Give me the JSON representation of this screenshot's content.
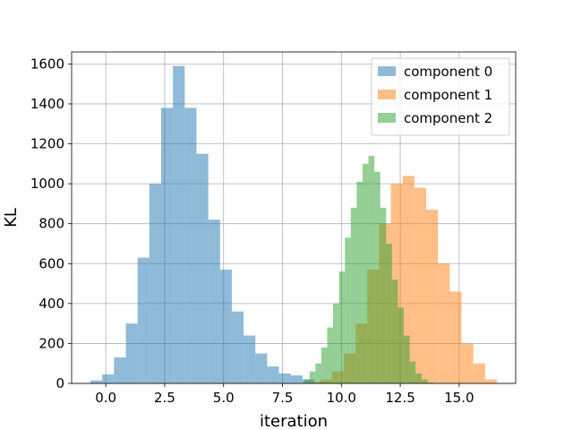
{
  "chart_data": {
    "type": "histogram",
    "xlabel": "iteration",
    "ylabel": "KL",
    "xlim": [
      -1.45,
      17.4
    ],
    "ylim": [
      0,
      1660
    ],
    "xticks": [
      0.0,
      2.5,
      5.0,
      7.5,
      10.0,
      12.5,
      15.0
    ],
    "xtick_labels": [
      "0.0",
      "2.5",
      "5.0",
      "7.5",
      "10.0",
      "12.5",
      "15.0"
    ],
    "yticks": [
      0,
      200,
      400,
      600,
      800,
      1000,
      1200,
      1400,
      1600
    ],
    "ytick_labels": [
      "0",
      "200",
      "400",
      "600",
      "800",
      "1000",
      "1200",
      "1400",
      "1600"
    ],
    "grid": true,
    "legend_position": "top-right",
    "series": [
      {
        "name": "component 0",
        "color": "#1f77b4",
        "bin_edges": [
          -0.65,
          -0.15,
          0.35,
          0.85,
          1.35,
          1.85,
          2.35,
          2.85,
          3.35,
          3.85,
          4.35,
          4.85,
          5.35,
          5.85,
          6.35,
          6.85,
          7.35,
          7.85,
          8.35,
          8.85,
          9.35
        ],
        "values": [
          15,
          45,
          130,
          300,
          630,
          1000,
          1380,
          1590,
          1380,
          1150,
          820,
          570,
          360,
          240,
          150,
          85,
          50,
          40,
          20,
          5
        ]
      },
      {
        "name": "component 1",
        "color": "#ff7f0e",
        "bin_edges": [
          8.6,
          9.1,
          9.6,
          10.1,
          10.6,
          11.1,
          11.6,
          12.1,
          12.6,
          13.1,
          13.6,
          14.1,
          14.6,
          15.1,
          15.6,
          16.1,
          16.6
        ],
        "values": [
          5,
          20,
          60,
          150,
          300,
          570,
          800,
          1000,
          1040,
          980,
          870,
          600,
          460,
          200,
          100,
          20
        ]
      },
      {
        "name": "component 2",
        "color": "#2ca02c",
        "bin_edges": [
          8.4,
          8.65,
          8.9,
          9.15,
          9.4,
          9.65,
          9.9,
          10.15,
          10.4,
          10.65,
          10.9,
          11.15,
          11.4,
          11.65,
          11.9,
          12.15,
          12.4,
          12.65,
          12.9,
          13.15,
          13.4,
          13.65,
          13.9
        ],
        "values": [
          20,
          60,
          100,
          180,
          280,
          400,
          560,
          730,
          880,
          1010,
          1100,
          1140,
          1060,
          880,
          700,
          520,
          380,
          240,
          110,
          50,
          20,
          5
        ]
      }
    ]
  }
}
